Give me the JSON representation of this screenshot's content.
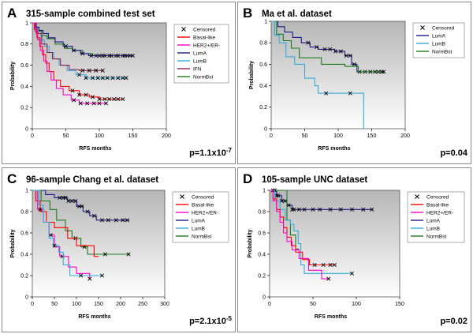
{
  "colors": {
    "plot_bg_top": "#b6b6b6",
    "plot_bg_bottom": "#ffffff",
    "censor_mark": "#000000",
    "Basal-like": "#ff0000",
    "HER2+/ER-": "#ff00cc",
    "LumA": "#1f1a8c",
    "LumB": "#33aadd",
    "IFN": "#8b2252",
    "NormBst": "#1d7a1d"
  },
  "chart_data": [
    {
      "panel": "A",
      "title": "315-sample combined test set",
      "type": "line",
      "xlabel": "RFS months",
      "ylabel": "Probability",
      "xlim": [
        0,
        200
      ],
      "ylim": [
        0,
        1
      ],
      "xticks": [
        0,
        50,
        100,
        150,
        200
      ],
      "yticks": [
        0,
        0.2,
        0.4,
        0.6,
        0.8,
        1
      ],
      "grid": false,
      "legend": {
        "placement": "right",
        "censor_label": "Censored",
        "entries": [
          "Basal-like",
          "HER2+/ER-",
          "LumA",
          "LumB",
          "IFN",
          "NormBst"
        ]
      },
      "pvalue": {
        "base": "p=1.1x10",
        "exponent": "-7"
      },
      "series": [
        {
          "name": "NormBst",
          "steps": [
            [
              0,
              1
            ],
            [
              4,
              0.96
            ],
            [
              8,
              0.92
            ],
            [
              14,
              0.88
            ],
            [
              22,
              0.85
            ],
            [
              34,
              0.8
            ],
            [
              48,
              0.76
            ],
            [
              60,
              0.74
            ],
            [
              75,
              0.71
            ],
            [
              90,
              0.69
            ]
          ],
          "end": 150,
          "censored": [
            95,
            105,
            115,
            125,
            135,
            142,
            150
          ]
        },
        {
          "name": "LumA",
          "steps": [
            [
              0,
              1
            ],
            [
              5,
              0.96
            ],
            [
              10,
              0.93
            ],
            [
              16,
              0.9
            ],
            [
              24,
              0.86
            ],
            [
              34,
              0.82
            ],
            [
              46,
              0.78
            ],
            [
              60,
              0.74
            ],
            [
              72,
              0.71
            ],
            [
              84,
              0.69
            ]
          ],
          "end": 150,
          "censored": [
            50,
            62,
            75,
            88,
            100,
            108,
            118,
            128,
            138,
            146
          ]
        },
        {
          "name": "LumB",
          "steps": [
            [
              0,
              1
            ],
            [
              4,
              0.95
            ],
            [
              8,
              0.9
            ],
            [
              13,
              0.84
            ],
            [
              18,
              0.78
            ],
            [
              25,
              0.72
            ],
            [
              32,
              0.66
            ],
            [
              40,
              0.6
            ],
            [
              52,
              0.55
            ],
            [
              65,
              0.51
            ],
            [
              80,
              0.48
            ]
          ],
          "end": 140,
          "censored": [
            70,
            80,
            90,
            98,
            105,
            112,
            120,
            128,
            135,
            140
          ]
        },
        {
          "name": "IFN",
          "steps": [
            [
              0,
              1
            ],
            [
              6,
              0.9
            ],
            [
              14,
              0.8
            ],
            [
              22,
              0.72
            ],
            [
              30,
              0.66
            ],
            [
              42,
              0.6
            ],
            [
              55,
              0.56
            ],
            [
              70,
              0.55
            ]
          ],
          "end": 105,
          "censored": [
            75,
            85,
            95,
            105
          ]
        },
        {
          "name": "Basal-like",
          "steps": [
            [
              0,
              1
            ],
            [
              3,
              0.94
            ],
            [
              7,
              0.86
            ],
            [
              11,
              0.78
            ],
            [
              15,
              0.7
            ],
            [
              20,
              0.62
            ],
            [
              25,
              0.54
            ],
            [
              32,
              0.46
            ],
            [
              42,
              0.4
            ],
            [
              55,
              0.36
            ],
            [
              70,
              0.32
            ],
            [
              85,
              0.3
            ],
            [
              100,
              0.28
            ]
          ],
          "end": 135,
          "censored": [
            60,
            70,
            80,
            90,
            100,
            108,
            115,
            122,
            128,
            135
          ]
        },
        {
          "name": "HER2+/ER-",
          "steps": [
            [
              0,
              1
            ],
            [
              4,
              0.92
            ],
            [
              8,
              0.84
            ],
            [
              12,
              0.74
            ],
            [
              17,
              0.64
            ],
            [
              22,
              0.54
            ],
            [
              28,
              0.46
            ],
            [
              36,
              0.38
            ],
            [
              46,
              0.32
            ],
            [
              58,
              0.27
            ],
            [
              70,
              0.24
            ]
          ],
          "end": 110,
          "censored": [
            62,
            72,
            82,
            92,
            100,
            110
          ]
        }
      ]
    },
    {
      "panel": "B",
      "title": "Ma et al. dataset",
      "type": "line",
      "xlabel": "RFS months",
      "ylabel": "Probability",
      "xlim": [
        0,
        200
      ],
      "ylim": [
        0,
        1
      ],
      "xticks": [
        0,
        50,
        100,
        150,
        200
      ],
      "yticks": [
        0,
        0.2,
        0.4,
        0.6,
        0.8,
        1
      ],
      "grid": false,
      "legend": {
        "placement": "right",
        "censor_label": "Censored",
        "entries": [
          "LumA",
          "LumB",
          "NormBst"
        ]
      },
      "pvalue": {
        "base": "p=0.04",
        "exponent": ""
      },
      "series": [
        {
          "name": "LumA",
          "steps": [
            [
              0,
              1
            ],
            [
              10,
              0.95
            ],
            [
              20,
              0.9
            ],
            [
              32,
              0.85
            ],
            [
              45,
              0.8
            ],
            [
              58,
              0.76
            ],
            [
              70,
              0.74
            ],
            [
              95,
              0.72
            ],
            [
              110,
              0.68
            ],
            [
              120,
              0.6
            ],
            [
              128,
              0.53
            ]
          ],
          "end": 168,
          "censored": [
            55,
            68,
            80,
            88,
            96,
            104,
            112,
            118,
            124,
            132,
            140,
            148,
            155,
            160,
            165,
            168
          ]
        },
        {
          "name": "NormBst",
          "steps": [
            [
              0,
              1
            ],
            [
              8,
              0.88
            ],
            [
              18,
              0.82
            ],
            [
              30,
              0.75
            ],
            [
              42,
              0.66
            ],
            [
              75,
              0.6
            ],
            [
              110,
              0.58
            ],
            [
              130,
              0.53
            ]
          ],
          "end": 165,
          "censored": []
        },
        {
          "name": "LumB",
          "steps": [
            [
              0,
              1
            ],
            [
              5,
              0.87
            ],
            [
              12,
              0.8
            ],
            [
              22,
              0.67
            ],
            [
              35,
              0.6
            ],
            [
              50,
              0.47
            ],
            [
              65,
              0.4
            ],
            [
              70,
              0.33
            ],
            [
              138,
              0.0
            ]
          ],
          "end": 138,
          "censored": [
            82,
            118
          ]
        }
      ]
    },
    {
      "panel": "C",
      "title": "96-sample Chang et al. dataset",
      "type": "line",
      "xlabel": "RFS months",
      "ylabel": "Probability",
      "xlim": [
        0,
        300
      ],
      "ylim": [
        0,
        1
      ],
      "xticks": [
        0,
        50,
        100,
        150,
        200,
        250,
        300
      ],
      "yticks": [
        0,
        0.2,
        0.4,
        0.6,
        0.8,
        1
      ],
      "grid": false,
      "legend": {
        "placement": "right",
        "censor_label": "Censored",
        "entries": [
          "Basal-like",
          "HER2+/ER-",
          "LumA",
          "LumB",
          "NormBst"
        ]
      },
      "pvalue": {
        "base": "p=2.1x10",
        "exponent": "-5"
      },
      "series": [
        {
          "name": "LumA",
          "steps": [
            [
              0,
              1
            ],
            [
              30,
              0.96
            ],
            [
              50,
              0.93
            ],
            [
              80,
              0.9
            ],
            [
              100,
              0.85
            ],
            [
              115,
              0.8
            ],
            [
              130,
              0.76
            ],
            [
              145,
              0.72
            ]
          ],
          "end": 220,
          "censored": [
            62,
            70,
            75,
            82,
            90,
            98,
            106,
            112,
            125,
            140,
            158,
            172,
            190,
            205,
            215
          ]
        },
        {
          "name": "NormBst",
          "steps": [
            [
              0,
              1
            ],
            [
              20,
              0.9
            ],
            [
              40,
              0.82
            ],
            [
              55,
              0.72
            ],
            [
              75,
              0.62
            ],
            [
              90,
              0.55
            ],
            [
              110,
              0.47
            ],
            [
              125,
              0.4
            ]
          ],
          "end": 220,
          "censored": [
            98,
            118,
            165,
            218
          ]
        },
        {
          "name": "Basal-like",
          "steps": [
            [
              0,
              1
            ],
            [
              8,
              0.9
            ],
            [
              18,
              0.8
            ],
            [
              32,
              0.7
            ],
            [
              50,
              0.65
            ],
            [
              80,
              0.55
            ],
            [
              100,
              0.48
            ],
            [
              140,
              0.38
            ]
          ],
          "end": 150,
          "censored": []
        },
        {
          "name": "HER2+/ER-",
          "steps": [
            [
              0,
              1
            ],
            [
              12,
              0.82
            ],
            [
              25,
              0.7
            ],
            [
              38,
              0.58
            ],
            [
              50,
              0.47
            ],
            [
              62,
              0.38
            ],
            [
              82,
              0.28
            ],
            [
              100,
              0.22
            ],
            [
              130,
              0.17
            ]
          ],
          "end": 130,
          "censored": [
            18,
            42,
            68,
            130
          ]
        },
        {
          "name": "LumB",
          "steps": [
            [
              0,
              1
            ],
            [
              15,
              0.86
            ],
            [
              25,
              0.7
            ],
            [
              38,
              0.55
            ],
            [
              48,
              0.48
            ],
            [
              60,
              0.42
            ],
            [
              70,
              0.3
            ],
            [
              85,
              0.2
            ]
          ],
          "end": 160,
          "censored": [
            50,
            110,
            158
          ]
        }
      ]
    },
    {
      "panel": "D",
      "title": "105-sample UNC dataset",
      "type": "line",
      "xlabel": "RFS months",
      "ylabel": "Probability",
      "xlim": [
        0,
        150
      ],
      "ylim": [
        0,
        1
      ],
      "xticks": [
        0,
        50,
        100,
        150
      ],
      "yticks": [
        0,
        0.2,
        0.4,
        0.6,
        0.8,
        1
      ],
      "grid": false,
      "legend": {
        "placement": "right",
        "censor_label": "Censored",
        "entries": [
          "Basal-like",
          "HER2+/ER-",
          "LumA",
          "LumB",
          "NormBst"
        ]
      },
      "pvalue": {
        "base": "p=0.02",
        "exponent": ""
      },
      "series": [
        {
          "name": "LumA",
          "steps": [
            [
              0,
              1
            ],
            [
              8,
              0.95
            ],
            [
              14,
              0.9
            ],
            [
              20,
              0.86
            ],
            [
              26,
              0.82
            ]
          ],
          "end": 118,
          "censored": [
            4,
            8,
            10,
            14,
            18,
            22,
            26,
            28,
            34,
            40,
            50,
            58,
            70,
            82,
            95,
            108,
            118
          ]
        },
        {
          "name": "NormBst",
          "steps": [
            [
              0,
              1
            ],
            [
              20,
              0.72
            ],
            [
              24,
              0.58
            ],
            [
              30,
              0.45
            ]
          ],
          "end": 34,
          "censored": [
            6
          ]
        },
        {
          "name": "LumB",
          "steps": [
            [
              0,
              1
            ],
            [
              6,
              0.9
            ],
            [
              12,
              0.82
            ],
            [
              18,
              0.72
            ],
            [
              24,
              0.68
            ],
            [
              28,
              0.62
            ],
            [
              33,
              0.5
            ],
            [
              36,
              0.3
            ],
            [
              40,
              0.22
            ]
          ],
          "end": 95,
          "censored": [
            95
          ]
        },
        {
          "name": "Basal-like",
          "steps": [
            [
              0,
              1
            ],
            [
              4,
              0.92
            ],
            [
              8,
              0.82
            ],
            [
              12,
              0.75
            ],
            [
              16,
              0.65
            ],
            [
              20,
              0.56
            ],
            [
              25,
              0.48
            ],
            [
              30,
              0.42
            ],
            [
              38,
              0.35
            ],
            [
              46,
              0.3
            ]
          ],
          "end": 75,
          "censored": [
            52,
            62,
            70,
            75
          ]
        },
        {
          "name": "HER2+/ER-",
          "steps": [
            [
              0,
              1
            ],
            [
              4,
              0.9
            ],
            [
              8,
              0.8
            ],
            [
              12,
              0.7
            ],
            [
              16,
              0.6
            ],
            [
              20,
              0.52
            ],
            [
              26,
              0.44
            ],
            [
              34,
              0.36
            ],
            [
              45,
              0.25
            ],
            [
              60,
              0.17
            ]
          ],
          "end": 68,
          "censored": [
            68
          ]
        }
      ]
    }
  ]
}
